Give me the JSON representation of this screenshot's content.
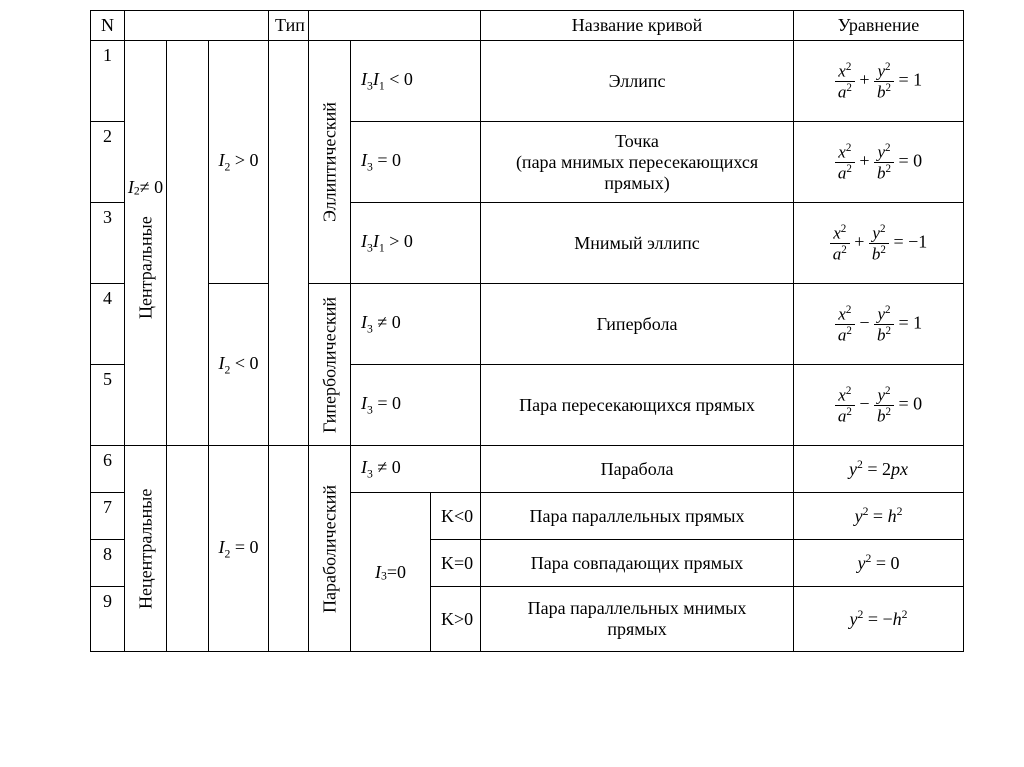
{
  "header": {
    "n": "N",
    "type": "Тип",
    "name": "Название кривой",
    "eqn": "Уравнение"
  },
  "groups": {
    "central": "Центральные",
    "noncentral": "Нецентральные",
    "elliptic": "Эллиптический",
    "hyperbolic": "Гиперболический",
    "parabolic": "Параболический"
  },
  "inv": {
    "i2ne0_html": "<span class='it'>I</span><span class='sub'>2</span>≠ 0",
    "i2gt0_html": "<span class='it'>I</span><span class='sub'>2</span> &gt; 0",
    "i2lt0_html": "<span class='it'>I</span><span class='sub'>2</span> &lt; 0",
    "i2eq0_html": "<span class='it'>I</span><span class='sub'>2</span> = 0",
    "i3ne0_html": "<span class='it'>I</span><span class='sub'>3</span> ≠ 0",
    "i3eq0_html": "<span class='it'>I</span><span class='sub'>3</span> = 0",
    "i3eq0_vert_html": "<span class='it'>I</span><span class='sub'>3</span>=0",
    "i3i1lt0_html": "<span class='it'>I</span><span class='sub'>3</span><span class='it'>I</span><span class='sub'>1</span> &lt; 0",
    "i3i1gt0_html": "<span class='it'>I</span><span class='sub'>3</span><span class='it'>I</span><span class='sub'>1</span> &gt; 0",
    "klt0": "K<0",
    "keq0": "K=0",
    "kgt0": "K>0"
  },
  "rows": {
    "r1": {
      "n": "1",
      "name": "Эллипс",
      "eq_html": "<span class='frac'><span class='num'><span class='it'>x</span><span class='sup'>2</span></span><span class='den'><span class='it'>a</span><span class='sup'>2</span></span></span> + <span class='frac'><span class='num'><span class='it'>y</span><span class='sup'>2</span></span><span class='den'><span class='it'>b</span><span class='sup'>2</span></span></span> = 1"
    },
    "r2": {
      "n": "2",
      "name_html": "Точка<br>(пара мнимых пересекающихся<br>прямых)",
      "eq_html": "<span class='frac'><span class='num'><span class='it'>x</span><span class='sup'>2</span></span><span class='den'><span class='it'>a</span><span class='sup'>2</span></span></span> + <span class='frac'><span class='num'><span class='it'>y</span><span class='sup'>2</span></span><span class='den'><span class='it'>b</span><span class='sup'>2</span></span></span> = 0"
    },
    "r3": {
      "n": "3",
      "name": "Мнимый эллипс",
      "eq_html": "<span class='frac'><span class='num'><span class='it'>x</span><span class='sup'>2</span></span><span class='den'><span class='it'>a</span><span class='sup'>2</span></span></span> + <span class='frac'><span class='num'><span class='it'>y</span><span class='sup'>2</span></span><span class='den'><span class='it'>b</span><span class='sup'>2</span></span></span> = −1"
    },
    "r4": {
      "n": "4",
      "name": "Гипербола",
      "eq_html": "<span class='frac'><span class='num'><span class='it'>x</span><span class='sup'>2</span></span><span class='den'><span class='it'>a</span><span class='sup'>2</span></span></span> − <span class='frac'><span class='num'><span class='it'>y</span><span class='sup'>2</span></span><span class='den'><span class='it'>b</span><span class='sup'>2</span></span></span> = 1"
    },
    "r5": {
      "n": "5",
      "name": "Пара пересекающихся прямых",
      "eq_html": "<span class='frac'><span class='num'><span class='it'>x</span><span class='sup'>2</span></span><span class='den'><span class='it'>a</span><span class='sup'>2</span></span></span> − <span class='frac'><span class='num'><span class='it'>y</span><span class='sup'>2</span></span><span class='den'><span class='it'>b</span><span class='sup'>2</span></span></span> = 0"
    },
    "r6": {
      "n": "6",
      "name": "Парабола",
      "eq_html": "<span class='it'>y</span><span class='sup'>2</span> = 2<span class='it'>px</span>"
    },
    "r7": {
      "n": "7",
      "name": "Пара параллельных прямых",
      "eq_html": "<span class='it'>y</span><span class='sup'>2</span> = <span class='it'>h</span><span class='sup'>2</span>"
    },
    "r8": {
      "n": "8",
      "name": "Пара совпадающих прямых",
      "eq_html": "<span class='it'>y</span><span class='sup'>2</span> = 0"
    },
    "r9": {
      "n": "9",
      "name_html": "Пара параллельных мнимых<br>прямых",
      "eq_html": "<span class='it'>y</span><span class='sup'>2</span> = −<span class='it'>h</span><span class='sup'>2</span>"
    }
  },
  "style": {
    "background": "#ffffff",
    "border_color": "#000000",
    "font_family": "Times New Roman",
    "structure": "table",
    "columns": [
      "N",
      "category",
      "I2-group",
      "I2-sign",
      "Тип",
      "type-name",
      "condition",
      "K",
      "Название кривой",
      "Уравнение"
    ]
  }
}
